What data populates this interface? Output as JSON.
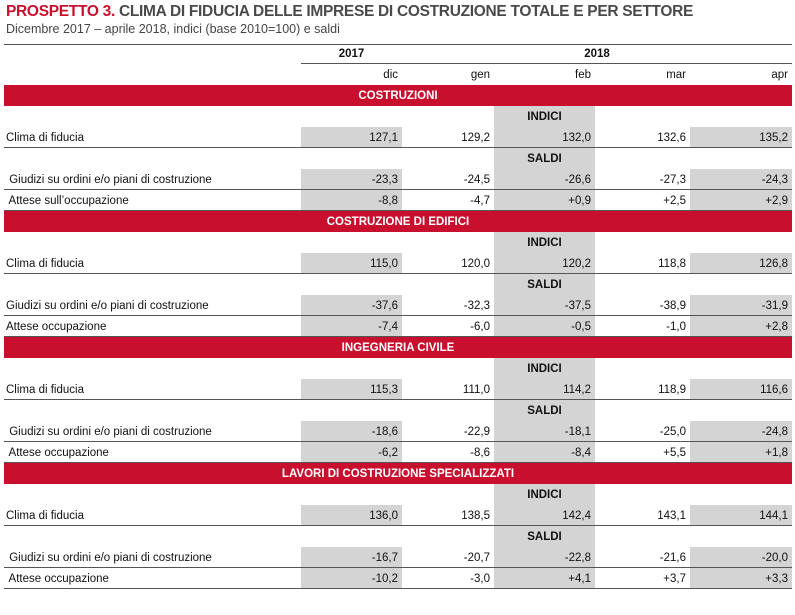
{
  "title": {
    "prefix": "PROSPETTO 3.",
    "rest": " CLIMA DI FIDUCIA DELLE IMPRESE DI COSTRUZIONE TOTALE E PER SETTORE"
  },
  "subtitle": "Dicembre 2017 – aprile  2018, indici (base 2010=100) e saldi",
  "years": {
    "y2017": "2017",
    "y2018": "2018"
  },
  "months": [
    "dic",
    "gen",
    "feb",
    "mar",
    "apr"
  ],
  "subheads": {
    "indici": "INDICI",
    "saldi": "SALDI"
  },
  "sections": [
    {
      "name": "COSTRUZIONI",
      "indici": [
        {
          "label": "Clima di fiducia",
          "values": [
            "127,1",
            "129,2",
            "132,0",
            "132,6",
            "135,2"
          ]
        }
      ],
      "saldi": [
        {
          "label": " Giudizi su ordini e/o piani di costruzione",
          "values": [
            "-23,3",
            "-24,5",
            "-26,6",
            "-27,3",
            "-24,3"
          ]
        },
        {
          "label": " Attese sull’occupazione",
          "values": [
            "-8,8",
            "-4,7",
            "+0,9",
            "+2,5",
            "+2,9"
          ]
        }
      ]
    },
    {
      "name": "COSTRUZIONE DI EDIFICI",
      "indici": [
        {
          "label": "Clima di fiducia",
          "values": [
            "115,0",
            "120,0",
            "120,2",
            "118,8",
            "126,8"
          ]
        }
      ],
      "saldi": [
        {
          "label": "Giudizi su ordini e/o piani di costruzione",
          "values": [
            "-37,6",
            "-32,3",
            "-37,5",
            "-38,9",
            "-31,9"
          ]
        },
        {
          "label": "Attese occupazione",
          "values": [
            "-7,4",
            "-6,0",
            "-0,5",
            "-1,0",
            "+2,8"
          ]
        }
      ]
    },
    {
      "name": "INGEGNERIA CIVILE",
      "indici": [
        {
          "label": "Clima di fiducia",
          "values": [
            "115,3",
            "111,0",
            "114,2",
            "118,9",
            "116,6"
          ]
        }
      ],
      "saldi": [
        {
          "label": " Giudizi su ordini e/o piani di costruzione",
          "values": [
            "-18,6",
            "-22,9",
            "-18,1",
            "-25,0",
            "-24,8"
          ]
        },
        {
          "label": " Attese occupazione",
          "values": [
            "-6,2",
            "-8,6",
            "-8,4",
            "+5,5",
            "+1,8"
          ]
        }
      ]
    },
    {
      "name": "LAVORI DI COSTRUZIONE SPECIALIZZATI",
      "indici": [
        {
          "label": "Clima di fiducia",
          "values": [
            "136,0",
            "138,5",
            "142,4",
            "143,1",
            "144,1"
          ]
        }
      ],
      "saldi": [
        {
          "label": " Giudizi su ordini e/o piani di costruzione",
          "values": [
            "-16,7",
            "-20,7",
            "-22,8",
            "-21,6",
            "-20,0"
          ]
        },
        {
          "label": " Attese occupazione",
          "values": [
            "-10,2",
            "-3,0",
            "+4,1",
            "+3,7",
            "+3,3"
          ]
        }
      ]
    }
  ],
  "colors": {
    "accent": "#c8102e",
    "shade": "#d4d4d4"
  }
}
